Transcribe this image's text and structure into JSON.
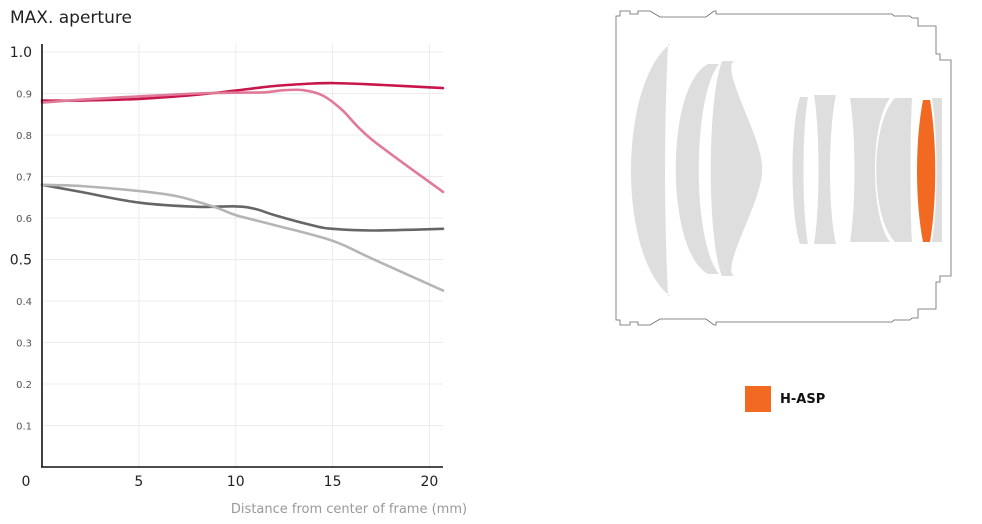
{
  "chart_data": {
    "type": "line",
    "title": "MAX. aperture",
    "xlabel": "Distance from center of frame (mm)",
    "ylabel": "",
    "xlim": [
      0,
      20.7
    ],
    "ylim": [
      0,
      1.0
    ],
    "x_ticks": [
      {
        "value": 0,
        "label": "0"
      },
      {
        "value": 5,
        "label": "5"
      },
      {
        "value": 10,
        "label": "10"
      },
      {
        "value": 15,
        "label": "15"
      },
      {
        "value": 20,
        "label": "20"
      }
    ],
    "y_ticks": [
      {
        "value": 0.1,
        "label": "0.1"
      },
      {
        "value": 0.2,
        "label": "0.2"
      },
      {
        "value": 0.3,
        "label": "0.3"
      },
      {
        "value": 0.4,
        "label": "0.4"
      },
      {
        "value": 0.5,
        "label": "0.5"
      },
      {
        "value": 0.6,
        "label": "0.6"
      },
      {
        "value": 0.7,
        "label": "0.7"
      },
      {
        "value": 0.8,
        "label": "0.8"
      },
      {
        "value": 0.9,
        "label": "0.9"
      },
      {
        "value": 1.0,
        "label": "1.0"
      }
    ],
    "grid": true,
    "series": [
      {
        "color": "#c8154a",
        "x": [
          0,
          2,
          5,
          8,
          10,
          12,
          14,
          15,
          17,
          20.7
        ],
        "y": [
          0.883,
          0.883,
          0.887,
          0.897,
          0.907,
          0.918,
          0.924,
          0.925,
          0.922,
          0.913
        ]
      },
      {
        "color": "#e07a98",
        "x": [
          0,
          2,
          5,
          8,
          10,
          11.5,
          12.5,
          13.5,
          14.5,
          15.5,
          17,
          20.7
        ],
        "y": [
          0.878,
          0.885,
          0.893,
          0.9,
          0.902,
          0.903,
          0.908,
          0.908,
          0.895,
          0.86,
          0.79,
          0.663
        ]
      },
      {
        "color": "#666666",
        "x": [
          0,
          2,
          5,
          8,
          10,
          11,
          12,
          14,
          15,
          17,
          20.7
        ],
        "y": [
          0.68,
          0.663,
          0.637,
          0.627,
          0.628,
          0.622,
          0.607,
          0.582,
          0.574,
          0.57,
          0.574
        ]
      },
      {
        "color": "#b5b5b5",
        "x": [
          0,
          2,
          5,
          7,
          9,
          10,
          12,
          15,
          17,
          20.7
        ],
        "y": [
          0.68,
          0.677,
          0.665,
          0.652,
          0.625,
          0.607,
          0.583,
          0.545,
          0.503,
          0.425
        ]
      }
    ]
  },
  "legend": {
    "items": [
      {
        "label": "H-ASP",
        "color": "#f26a21"
      }
    ]
  },
  "diagram": {
    "lens_color": "#dedede",
    "highlight_color": "#f26a21",
    "outline_color": "#666666"
  }
}
